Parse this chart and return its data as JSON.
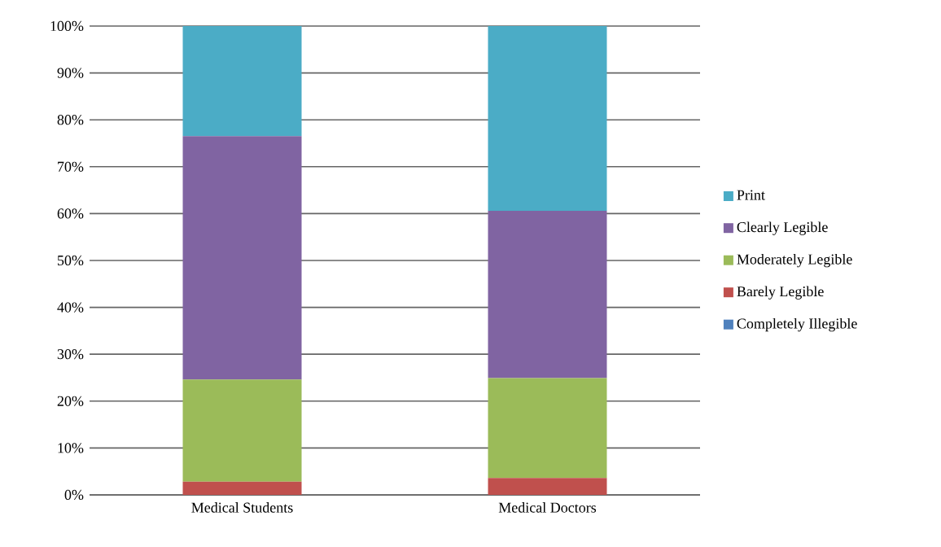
{
  "chart_data": {
    "type": "bar",
    "stacked": true,
    "categories": [
      "Medical Students",
      "Medical Doctors"
    ],
    "series": [
      {
        "name": "Completely Illegible",
        "color": "#4f81bd",
        "values": [
          0,
          0
        ]
      },
      {
        "name": "Barely Legible",
        "color": "#c0504d",
        "values": [
          2.8,
          3.6
        ]
      },
      {
        "name": "Moderately Legible",
        "color": "#9bbb59",
        "values": [
          21.8,
          21.3
        ]
      },
      {
        "name": "Clearly Legible",
        "color": "#8064a2",
        "values": [
          51.9,
          35.7
        ]
      },
      {
        "name": "Print",
        "color": "#4bacc6",
        "values": [
          23.5,
          39.4
        ]
      }
    ],
    "ylim": [
      0,
      100
    ],
    "yticks": [
      {
        "value": 0,
        "label": "0%"
      },
      {
        "value": 10,
        "label": "10%"
      },
      {
        "value": 20,
        "label": "20%"
      },
      {
        "value": 30,
        "label": "30%"
      },
      {
        "value": 40,
        "label": "40%"
      },
      {
        "value": 50,
        "label": "50%"
      },
      {
        "value": 60,
        "label": "60%"
      },
      {
        "value": 70,
        "label": "70%"
      },
      {
        "value": 80,
        "label": "80%"
      },
      {
        "value": 90,
        "label": "90%"
      },
      {
        "value": 100,
        "label": "100%"
      }
    ],
    "grid": "y",
    "legend": "right"
  }
}
